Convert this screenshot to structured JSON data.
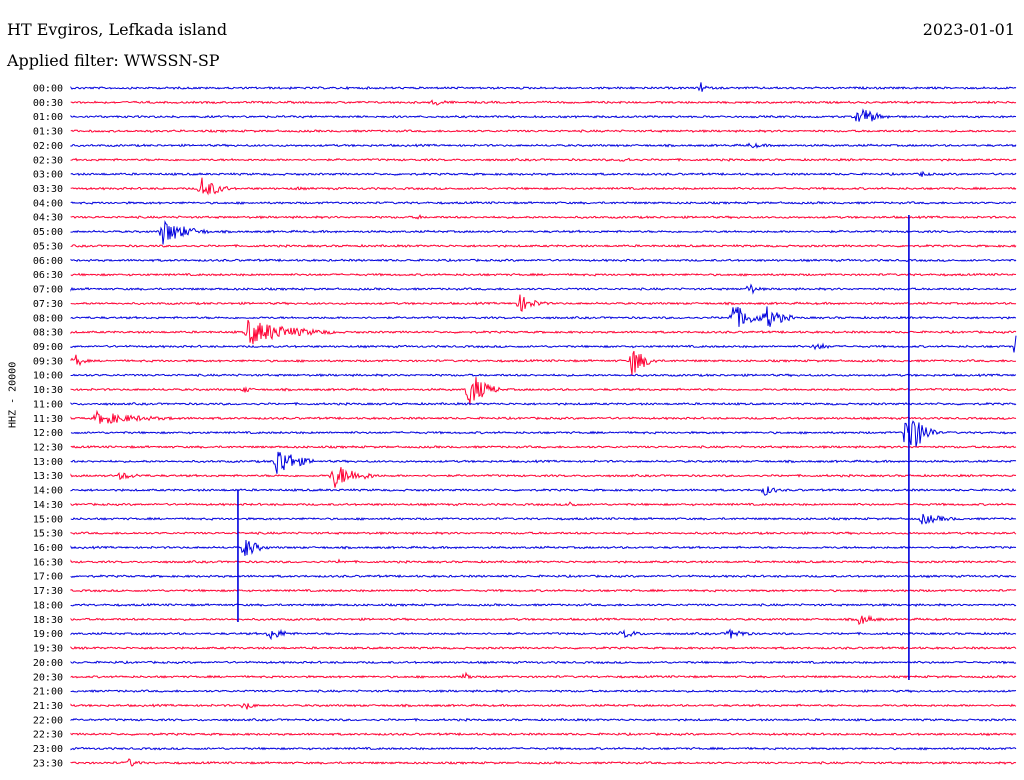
{
  "header": {
    "station": "HT Evgiros, Lefkada island",
    "date": "2023-01-01",
    "filter": "Applied filter: WWSSN-SP"
  },
  "chart_data": {
    "type": "line",
    "title": "HT Evgiros, Lefkada island",
    "ylabel": "HHZ - 20000",
    "colors": {
      "even": "#0000dd",
      "odd": "#ff0033"
    },
    "rows": [
      "00:00",
      "00:30",
      "01:00",
      "01:30",
      "02:00",
      "02:30",
      "03:00",
      "03:30",
      "04:00",
      "04:30",
      "05:00",
      "05:30",
      "06:00",
      "06:30",
      "07:00",
      "07:30",
      "08:00",
      "08:30",
      "09:00",
      "09:30",
      "10:00",
      "10:30",
      "11:00",
      "11:30",
      "12:00",
      "12:30",
      "13:00",
      "13:30",
      "14:00",
      "14:30",
      "15:00",
      "15:30",
      "16:00",
      "16:30",
      "17:00",
      "17:30",
      "18:00",
      "18:30",
      "19:00",
      "19:30",
      "20:00",
      "20:30",
      "21:00",
      "21:30",
      "22:00",
      "22:30",
      "23:00",
      "23:30"
    ],
    "events": [
      {
        "row": 0,
        "minute": 20.0,
        "amp": 6,
        "dur": 0.4
      },
      {
        "row": 1,
        "minute": 11.5,
        "amp": 5,
        "dur": 0.8
      },
      {
        "row": 2,
        "minute": 25.0,
        "amp": 12,
        "dur": 1.0
      },
      {
        "row": 4,
        "minute": 21.5,
        "amp": 3,
        "dur": 1.5
      },
      {
        "row": 5,
        "minute": 17.5,
        "amp": 4,
        "dur": 0.5
      },
      {
        "row": 6,
        "minute": 27.0,
        "amp": 4,
        "dur": 0.5
      },
      {
        "row": 7,
        "minute": 4.1,
        "amp": 14,
        "dur": 1.0
      },
      {
        "row": 7,
        "minute": 7.1,
        "amp": 3,
        "dur": 0.5
      },
      {
        "row": 9,
        "minute": 11.0,
        "amp": 3,
        "dur": 0.4
      },
      {
        "row": 10,
        "minute": 2.9,
        "amp": 14,
        "dur": 1.5
      },
      {
        "row": 14,
        "minute": 21.5,
        "amp": 8,
        "dur": 0.5
      },
      {
        "row": 15,
        "minute": 14.2,
        "amp": 10,
        "dur": 1.0
      },
      {
        "row": 16,
        "minute": 21.0,
        "amp": 15,
        "dur": 1.2
      },
      {
        "row": 16,
        "minute": 22.0,
        "amp": 15,
        "dur": 1.0
      },
      {
        "row": 17,
        "minute": 5.6,
        "amp": 14,
        "dur": 2.8
      },
      {
        "row": 18,
        "minute": 23.6,
        "amp": 5,
        "dur": 0.8
      },
      {
        "row": 18,
        "minute": 30.0,
        "amp": 17,
        "dur": 0.3
      },
      {
        "row": 19,
        "minute": 0.1,
        "amp": 9,
        "dur": 0.5
      },
      {
        "row": 19,
        "minute": 17.8,
        "amp": 18,
        "dur": 0.8
      },
      {
        "row": 21,
        "minute": 12.6,
        "amp": 22,
        "dur": 1.0
      },
      {
        "row": 21,
        "minute": 5.5,
        "amp": 5,
        "dur": 0.4
      },
      {
        "row": 23,
        "minute": 0.8,
        "amp": 7,
        "dur": 3.0
      },
      {
        "row": 24,
        "minute": 26.5,
        "amp": 30,
        "dur": 1.0
      },
      {
        "row": 26,
        "minute": 6.5,
        "amp": 18,
        "dur": 1.2
      },
      {
        "row": 27,
        "minute": 8.3,
        "amp": 14,
        "dur": 1.5
      },
      {
        "row": 27,
        "minute": 1.5,
        "amp": 4,
        "dur": 1.5
      },
      {
        "row": 28,
        "minute": 22.0,
        "amp": 6,
        "dur": 0.8
      },
      {
        "row": 29,
        "minute": 15.8,
        "amp": 5,
        "dur": 0.5
      },
      {
        "row": 30,
        "minute": 27.0,
        "amp": 6,
        "dur": 1.5
      },
      {
        "row": 32,
        "minute": 5.5,
        "amp": 12,
        "dur": 0.8
      },
      {
        "row": 33,
        "minute": 8.5,
        "amp": 3,
        "dur": 0.5
      },
      {
        "row": 38,
        "minute": 6.3,
        "amp": 7,
        "dur": 1.0
      },
      {
        "row": 38,
        "minute": 17.5,
        "amp": 5,
        "dur": 1.0
      },
      {
        "row": 38,
        "minute": 20.9,
        "amp": 6,
        "dur": 1.0
      },
      {
        "row": 37,
        "minute": 25.0,
        "amp": 6,
        "dur": 1.0
      },
      {
        "row": 41,
        "minute": 12.5,
        "amp": 8,
        "dur": 0.3
      },
      {
        "row": 43,
        "minute": 5.5,
        "amp": 6,
        "dur": 0.5
      },
      {
        "row": 47,
        "minute": 1.8,
        "amp": 5,
        "dur": 0.8
      }
    ],
    "spikes": [
      {
        "row": 24,
        "minute": 26.6,
        "up": 215,
        "down": 680
      },
      {
        "row": 32,
        "minute": 5.3,
        "up": 490,
        "down": 622
      }
    ]
  }
}
